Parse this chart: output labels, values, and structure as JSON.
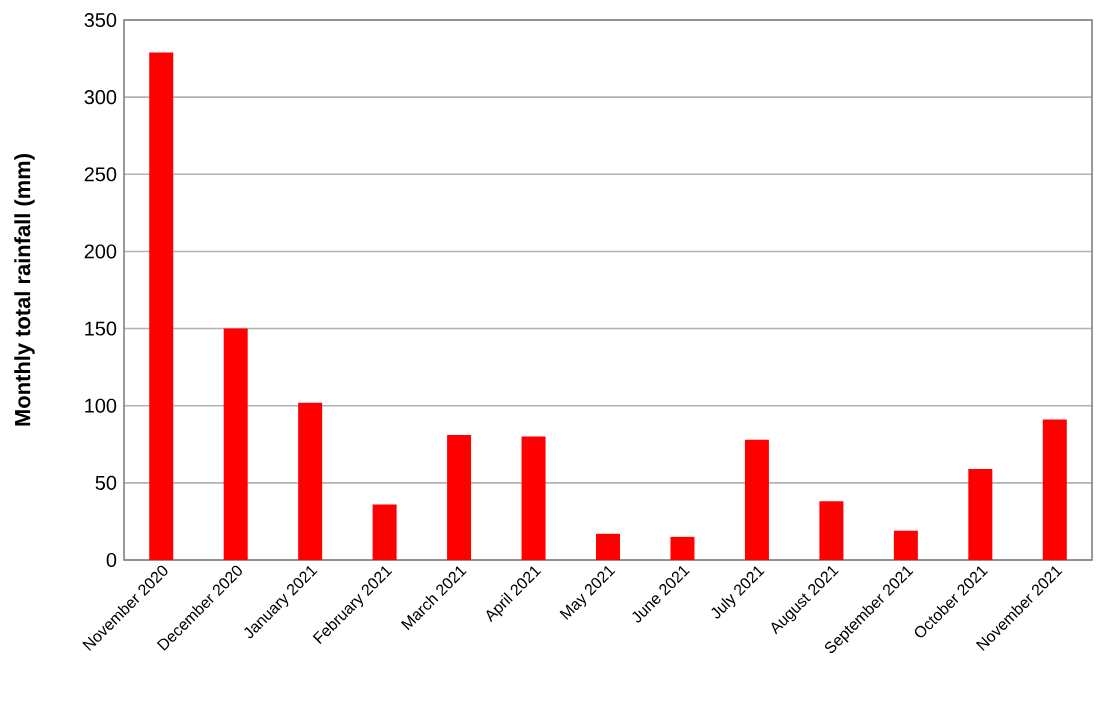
{
  "chart_data": {
    "type": "bar",
    "ylabel": "Monthly total rainfall (mm)",
    "categories": [
      "November 2020",
      "December 2020",
      "January 2021",
      "February 2021",
      "March 2021",
      "April 2021",
      "May 2021",
      "June 2021",
      "July 2021",
      "August 2021",
      "September 2021",
      "October 2021",
      "November 2021"
    ],
    "values": [
      329,
      150,
      102,
      36,
      81,
      80,
      17,
      15,
      78,
      38,
      19,
      59,
      91
    ],
    "color": "#ff0000",
    "ylim": [
      0,
      350
    ],
    "yticks": [
      0,
      50,
      100,
      150,
      200,
      250,
      300,
      350
    ],
    "grid": "y"
  }
}
